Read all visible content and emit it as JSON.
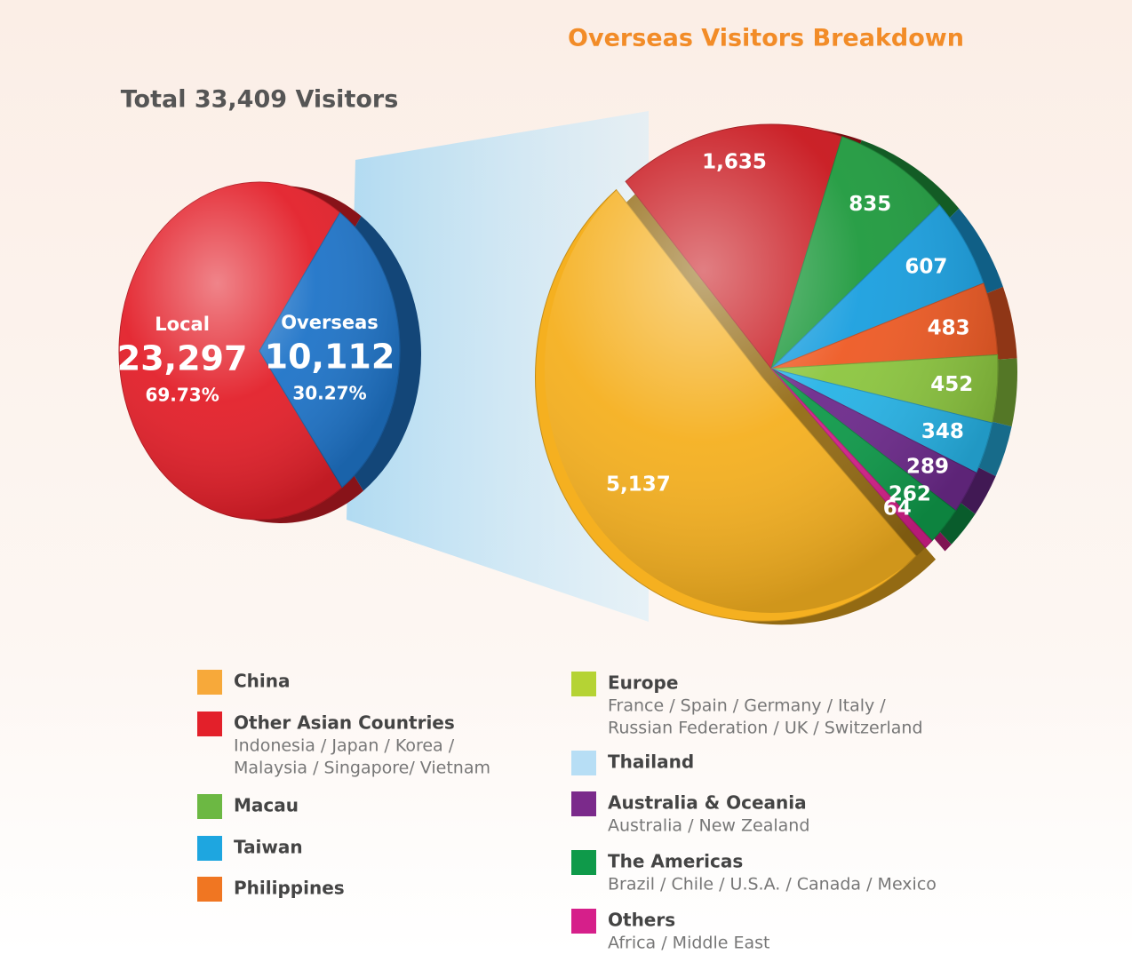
{
  "chart_data": [
    {
      "type": "pie",
      "title": "Total 33,409 Visitors",
      "categories": [
        "Local",
        "Overseas"
      ],
      "values": [
        23297,
        10112
      ],
      "value_labels": [
        "23,297",
        "10,112"
      ],
      "percentage_labels": [
        "69.73%",
        "30.27%"
      ],
      "colors": [
        "#e3202a",
        "#1f74c8"
      ]
    },
    {
      "type": "pie",
      "title": "Overseas Visitors Breakdown",
      "categories": [
        "China",
        "Other Asian Countries",
        "Macau",
        "Taiwan",
        "Philippines",
        "Europe",
        "Thailand",
        "Australia & Oceania",
        "The Americas",
        "Others"
      ],
      "descriptions": [
        null,
        [
          "Indonesia / Japan / Korea /",
          "Malaysia / Singapore/ Vietnam"
        ],
        null,
        null,
        null,
        [
          "France / Spain / Germany / Italy /",
          "Russian Federation / UK / Switzerland"
        ],
        null,
        [
          "Australia / New Zealand"
        ],
        [
          "Brazil / Chile / U.S.A. / Canada / Mexico"
        ],
        [
          "Africa / Middle East"
        ]
      ],
      "values": [
        5137,
        1635,
        835,
        607,
        483,
        452,
        348,
        289,
        262,
        64
      ],
      "value_labels": [
        "5,137",
        "1,635",
        "835",
        "607",
        "483",
        "452",
        "348",
        "289",
        "262",
        "64"
      ],
      "colors": [
        "#f5b020",
        "#c8161d",
        "#1f9a3e",
        "#1a9fdf",
        "#ee5a24",
        "#8cc63f",
        "#27b3e6",
        "#6d2a8c",
        "#0f9a4a",
        "#d61f8a"
      ],
      "legend_colors": [
        "#f7a93a",
        "#e3202a",
        "#6cb843",
        "#1ea6e0",
        "#f07622",
        "#b5d334",
        "#b7def5",
        "#7b2a8b",
        "#0f9a4a",
        "#d61f8a"
      ]
    }
  ]
}
